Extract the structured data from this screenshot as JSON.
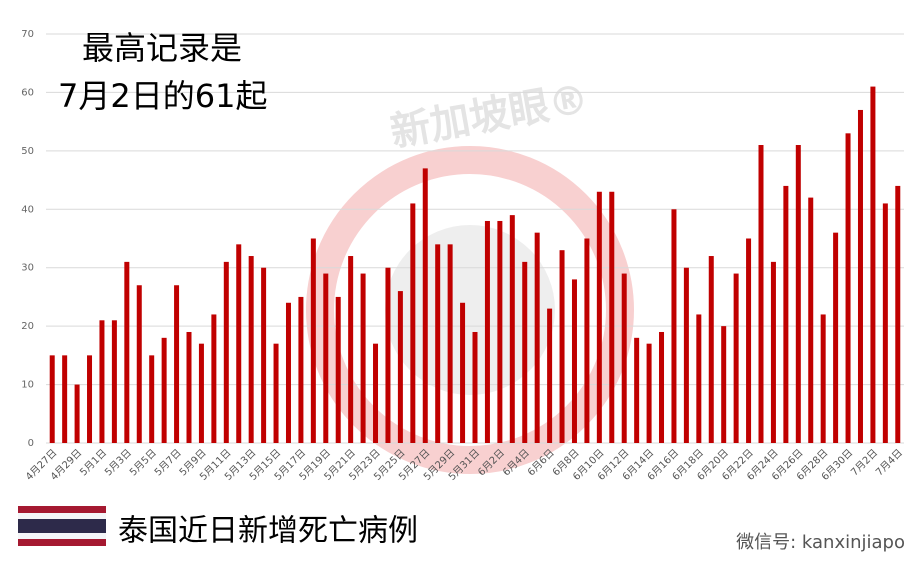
{
  "chart_data": {
    "type": "bar",
    "annotation": [
      "最高记录是",
      "7月2日的61起"
    ],
    "title": "泰国近日新增死亡病例",
    "watermark": "新加坡眼®",
    "footer": "微信号: kanxinjiapo",
    "categories": [
      "4月27日",
      null,
      "4月29日",
      null,
      "5月1日",
      null,
      "5月3日",
      null,
      "5月5日",
      null,
      "5月7日",
      null,
      "5月9日",
      null,
      "5月11日",
      null,
      "5月13日",
      null,
      "5月15日",
      null,
      "5月17日",
      null,
      "5月19日",
      null,
      "5月21日",
      null,
      "5月23日",
      null,
      "5月25日",
      null,
      "5月27日",
      null,
      "5月29日",
      null,
      "5月31日",
      null,
      "6月2日",
      null,
      "6月4日",
      null,
      "6月6日",
      null,
      "6月8日",
      null,
      "6月10日",
      null,
      "6月12日",
      null,
      "6月14日",
      null,
      "6月16日",
      null,
      "6月18日",
      null,
      "6月20日",
      null,
      "6月22日",
      null,
      "6月24日",
      null,
      "6月26日",
      null,
      "6月28日",
      null,
      "6月30日",
      null,
      "7月2日",
      null,
      "7月4日"
    ],
    "values": [
      15,
      15,
      10,
      15,
      21,
      21,
      31,
      27,
      15,
      18,
      27,
      19,
      17,
      22,
      31,
      34,
      32,
      30,
      17,
      24,
      25,
      35,
      29,
      25,
      32,
      29,
      17,
      30,
      26,
      41,
      47,
      34,
      34,
      24,
      19,
      38,
      38,
      39,
      31,
      36,
      23,
      33,
      28,
      35,
      43,
      43,
      29,
      18,
      17,
      19,
      40,
      30,
      22,
      32,
      20,
      29,
      35,
      51,
      31,
      44,
      51,
      42,
      22,
      36,
      53,
      57,
      61,
      41,
      44
    ],
    "color": "#c00000",
    "ylim": [
      0,
      70
    ],
    "yticks": [
      0,
      10,
      20,
      30,
      40,
      50,
      60,
      70
    ],
    "grid": true
  }
}
